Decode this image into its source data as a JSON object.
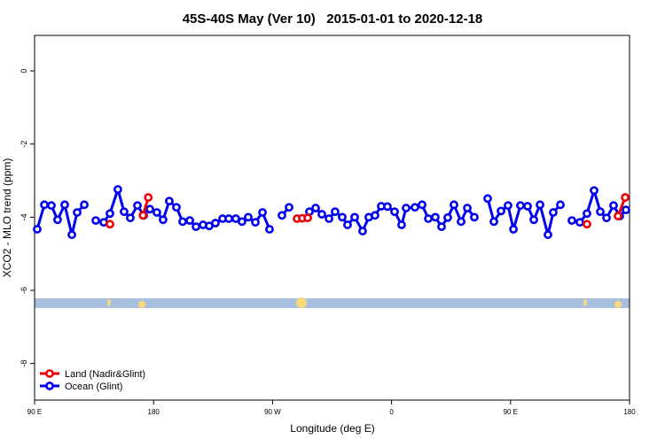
{
  "chart_data": {
    "type": "line",
    "title": "45S-40S May (Ver 10)   2015-01-01 to 2020-12-18",
    "xlabel": "Longitude (deg E)",
    "ylabel": "XCO2 - MLO trend (ppm)",
    "xlim": [
      90,
      540
    ],
    "ylim": [
      -9,
      0.97
    ],
    "xticks": [
      {
        "value": 90,
        "label": "90 E"
      },
      {
        "value": 180,
        "label": "180"
      },
      {
        "value": 270,
        "label": "90 W"
      },
      {
        "value": 360,
        "label": "0"
      },
      {
        "value": 450,
        "label": "90 E"
      },
      {
        "value": 540,
        "label": "180"
      }
    ],
    "yticks": [
      0,
      -2,
      -4,
      -6,
      -8
    ],
    "legend": "bottom-left",
    "series": [
      {
        "name": "Ocean (Glint)",
        "color": "#0000ee",
        "x": [
          92.0,
          97.4,
          102.7,
          107.4,
          112.8,
          118.2,
          122.2,
          127.6,
          132,
          136.3,
          142.3,
          147.0,
          153.0,
          157.7,
          162.4,
          167.8,
          172.5,
          177.2,
          182.5,
          187.2,
          191.9,
          197.3,
          202.0,
          207.4,
          212.1,
          217.4,
          222.1,
          226.8,
          232.2,
          236.9,
          242.2,
          246.9,
          251.6,
          257.0,
          262.4,
          267.7,
          272,
          277.1,
          282.5,
          290,
          297.9,
          302.6,
          307.3,
          312.7,
          317.3,
          322.7,
          326.7,
          332.1,
          338.1,
          342.8,
          347.5,
          352.2,
          356.9,
          362.3,
          367.6,
          371.0,
          377.7,
          383.1,
          387.8,
          393.1,
          397.8,
          402.5,
          407.2,
          412.6,
          417.3,
          422.6,
          427,
          432.7,
          437.4,
          442.8,
          448.1,
          452.2,
          457.5,
          462.9,
          467.6,
          472.3,
          478.3,
          482.3,
          487.7,
          492,
          496.4,
          502.4,
          507.8,
          513.2,
          517.9,
          522.6,
          527.9,
          532.6,
          537.3
        ],
        "values": [
          -4.33,
          -3.66,
          -3.68,
          -4.07,
          -3.66,
          -4.48,
          -3.87,
          -3.66,
          null,
          -4.09,
          -4.14,
          -3.9,
          -3.24,
          -3.85,
          -4.02,
          -3.68,
          -3.95,
          -3.78,
          -3.87,
          -4.07,
          -3.56,
          -3.73,
          -4.12,
          -4.09,
          -4.26,
          -4.21,
          -4.24,
          -4.16,
          -4.04,
          -4.04,
          -4.04,
          -4.12,
          -4.0,
          -4.14,
          -3.87,
          -4.33,
          null,
          -3.95,
          -3.73,
          null,
          -3.85,
          -3.75,
          -3.92,
          -4.04,
          -3.85,
          -4.0,
          -4.21,
          -4.0,
          -4.38,
          -4.0,
          -3.95,
          -3.7,
          -3.71,
          -3.85,
          -4.21,
          -3.75,
          -3.73,
          -3.66,
          -4.04,
          -4.0,
          -4.26,
          -4.01,
          -3.66,
          -4.12,
          -3.75,
          -4.0,
          null,
          -3.49,
          -4.12,
          -3.83,
          -3.68,
          -4.33,
          -3.68,
          -3.7,
          -4.07,
          -3.66,
          -4.48,
          -3.87,
          -3.66,
          null,
          -4.09,
          -4.14,
          -3.9,
          -3.27,
          -3.85,
          -4.02,
          -3.68,
          -3.97,
          -3.8
        ]
      },
      {
        "name": "Land (Nadir&Glint)",
        "color": "#ee0000",
        "x": [
          147.0,
          160,
          172.0,
          176.0,
          230,
          288.5,
          292.5,
          296.6,
          400,
          507.8,
          520,
          531.3,
          536.7
        ],
        "values": [
          -4.19,
          null,
          -3.95,
          -3.46,
          null,
          -4.04,
          -4.03,
          -4.02,
          null,
          -4.19,
          null,
          -3.97,
          -3.46
        ]
      }
    ]
  }
}
